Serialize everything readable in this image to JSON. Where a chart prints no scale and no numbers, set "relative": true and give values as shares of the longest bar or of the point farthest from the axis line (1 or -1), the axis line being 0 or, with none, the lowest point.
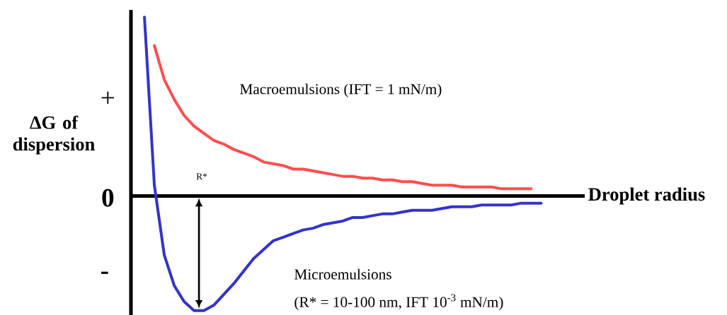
{
  "chart_data": {
    "type": "line",
    "relative": true,
    "xlabel": "Droplet radius",
    "ylabel": "ΔG of dispersion",
    "categories": [
      null,
      null,
      null,
      null,
      null,
      null,
      null,
      null,
      null,
      null,
      null,
      null,
      null,
      null,
      null,
      null,
      null,
      null,
      null,
      null,
      null,
      null,
      null,
      null,
      null,
      null,
      null,
      null,
      null,
      null,
      null,
      null,
      null,
      null,
      null,
      null,
      null,
      null,
      null,
      null,
      null
    ],
    "series": [
      {
        "color": "#ff4d4d",
        "values": [
          null,
          0.84,
          0.65,
          0.54,
          0.45,
          0.39,
          0.35,
          0.31,
          0.29,
          0.26,
          0.24,
          0.22,
          0.19,
          0.18,
          0.17,
          0.15,
          0.15,
          0.14,
          0.13,
          0.12,
          0.11,
          0.11,
          0.1,
          0.1,
          0.09,
          0.09,
          0.08,
          0.08,
          0.07,
          0.06,
          0.06,
          0.06,
          0.05,
          0.05,
          0.05,
          0.05,
          0.04,
          0.04,
          0.04,
          0.04,
          null
        ]
      },
      {
        "color": "#3333cc",
        "values": [
          1,
          0.06,
          -0.33,
          -0.5,
          -0.59,
          -0.64,
          -0.64,
          -0.61,
          -0.55,
          -0.49,
          -0.42,
          -0.35,
          -0.3,
          -0.25,
          -0.23,
          -0.21,
          -0.19,
          -0.18,
          -0.16,
          -0.15,
          -0.14,
          -0.12,
          -0.12,
          -0.11,
          -0.1,
          -0.1,
          -0.09,
          -0.08,
          -0.08,
          -0.08,
          -0.07,
          -0.06,
          -0.06,
          -0.06,
          -0.05,
          -0.05,
          -0.05,
          -0.05,
          -0.04,
          -0.04,
          -0.04
        ]
      }
    ],
    "annotations": [
      "+",
      "0",
      "-",
      "Macroemulsions (IFT = 1 mN/m)",
      "R*",
      "Microemulsions",
      "(R* = 10-100 nm, IFT 10$^{-3}$ mN/m)"
    ],
    "marker": "none",
    "line_style": "solid"
  }
}
